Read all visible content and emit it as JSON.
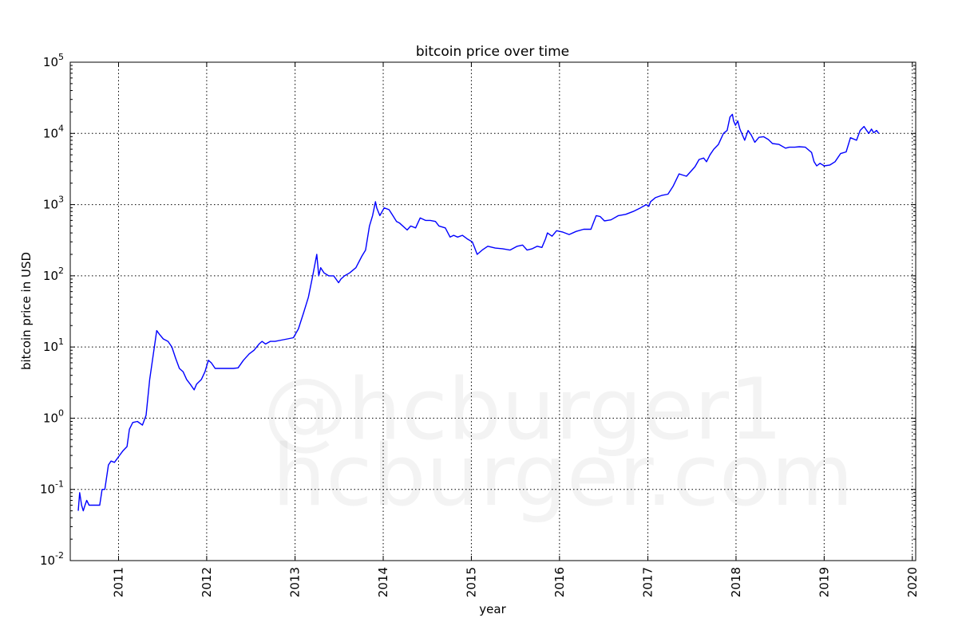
{
  "chart_data": {
    "type": "line",
    "title": "bitcoin price over time",
    "xlabel": "year",
    "ylabel": "bitcoin price in USD",
    "yscale": "log",
    "grid": true,
    "ylim": [
      0.01,
      100000
    ],
    "xlim": [
      "2010-06-15",
      "2020-01-15"
    ],
    "x_ticks": [
      "2011",
      "2012",
      "2013",
      "2014",
      "2015",
      "2016",
      "2017",
      "2018",
      "2019",
      "2020"
    ],
    "y_ticks": [
      {
        "base": "10",
        "exp": "-2",
        "value": 0.01
      },
      {
        "base": "10",
        "exp": "-1",
        "value": 0.1
      },
      {
        "base": "10",
        "exp": "0",
        "value": 1
      },
      {
        "base": "10",
        "exp": "1",
        "value": 10
      },
      {
        "base": "10",
        "exp": "2",
        "value": 100
      },
      {
        "base": "10",
        "exp": "3",
        "value": 1000
      },
      {
        "base": "10",
        "exp": "4",
        "value": 10000
      },
      {
        "base": "10",
        "exp": "5",
        "value": 100000
      }
    ],
    "line_color": "#0000ff",
    "series": [
      {
        "x": [
          "2010-07-18",
          "2010-07-24",
          "2010-08-01",
          "2010-08-08",
          "2010-08-15",
          "2010-08-22",
          "2010-09-01",
          "2010-09-20",
          "2010-10-15",
          "2010-10-25",
          "2010-11-05",
          "2010-11-20",
          "2010-12-01",
          "2010-12-15",
          "2011-01-05",
          "2011-01-20",
          "2011-02-05",
          "2011-02-15",
          "2011-03-01",
          "2011-03-20",
          "2011-04-10",
          "2011-04-25",
          "2011-05-10",
          "2011-05-25",
          "2011-06-08",
          "2011-06-20",
          "2011-07-05",
          "2011-07-25",
          "2011-08-10",
          "2011-08-25",
          "2011-09-10",
          "2011-09-25",
          "2011-10-10",
          "2011-10-25",
          "2011-11-10",
          "2011-11-20",
          "2011-12-10",
          "2011-12-25",
          "2012-01-08",
          "2012-01-20",
          "2012-02-05",
          "2012-02-20",
          "2012-03-10",
          "2012-04-01",
          "2012-04-20",
          "2012-05-10",
          "2012-06-01",
          "2012-06-25",
          "2012-07-15",
          "2012-08-05",
          "2012-08-17",
          "2012-09-01",
          "2012-09-20",
          "2012-10-10",
          "2012-11-05",
          "2012-12-01",
          "2012-12-25",
          "2013-01-15",
          "2013-02-05",
          "2013-02-25",
          "2013-03-15",
          "2013-04-01",
          "2013-04-09",
          "2013-04-17",
          "2013-05-01",
          "2013-05-20",
          "2013-06-10",
          "2013-06-30",
          "2013-07-10",
          "2013-07-25",
          "2013-08-15",
          "2013-09-10",
          "2013-10-05",
          "2013-10-20",
          "2013-11-05",
          "2013-11-18",
          "2013-11-30",
          "2013-12-05",
          "2013-12-18",
          "2014-01-05",
          "2014-01-25",
          "2014-02-10",
          "2014-02-25",
          "2014-03-10",
          "2014-04-10",
          "2014-04-25",
          "2014-05-15",
          "2014-06-03",
          "2014-06-25",
          "2014-07-15",
          "2014-08-05",
          "2014-08-20",
          "2014-09-15",
          "2014-10-05",
          "2014-10-20",
          "2014-11-05",
          "2014-11-25",
          "2014-12-15",
          "2015-01-05",
          "2015-01-14",
          "2015-01-25",
          "2015-02-15",
          "2015-03-10",
          "2015-04-10",
          "2015-05-10",
          "2015-06-10",
          "2015-07-10",
          "2015-08-01",
          "2015-08-20",
          "2015-09-10",
          "2015-10-01",
          "2015-10-20",
          "2015-11-04",
          "2015-11-12",
          "2015-12-01",
          "2015-12-20",
          "2016-01-15",
          "2016-02-10",
          "2016-03-10",
          "2016-04-10",
          "2016-05-10",
          "2016-06-01",
          "2016-06-17",
          "2016-07-05",
          "2016-08-01",
          "2016-09-01",
          "2016-10-01",
          "2016-11-01",
          "2016-12-01",
          "2016-12-25",
          "2017-01-05",
          "2017-01-12",
          "2017-02-01",
          "2017-03-01",
          "2017-03-25",
          "2017-04-15",
          "2017-05-10",
          "2017-05-25",
          "2017-06-10",
          "2017-07-15",
          "2017-08-01",
          "2017-08-20",
          "2017-09-01",
          "2017-09-15",
          "2017-10-01",
          "2017-10-20",
          "2017-11-10",
          "2017-11-25",
          "2017-12-07",
          "2017-12-17",
          "2017-12-22",
          "2017-12-30",
          "2018-01-08",
          "2018-01-17",
          "2018-02-06",
          "2018-02-20",
          "2018-03-05",
          "2018-03-20",
          "2018-04-06",
          "2018-04-25",
          "2018-05-15",
          "2018-06-01",
          "2018-06-28",
          "2018-07-25",
          "2018-08-10",
          "2018-09-01",
          "2018-09-20",
          "2018-10-15",
          "2018-11-10",
          "2018-11-20",
          "2018-12-01",
          "2018-12-15",
          "2019-01-01",
          "2019-01-25",
          "2019-02-15",
          "2019-03-10",
          "2019-04-02",
          "2019-04-20",
          "2019-05-15",
          "2019-05-30",
          "2019-06-15",
          "2019-06-26",
          "2019-07-05",
          "2019-07-16",
          "2019-07-25",
          "2019-08-06",
          "2019-08-15"
        ],
        "y": [
          0.05,
          0.09,
          0.06,
          0.05,
          0.06,
          0.07,
          0.06,
          0.06,
          0.06,
          0.1,
          0.1,
          0.22,
          0.25,
          0.24,
          0.3,
          0.35,
          0.4,
          0.7,
          0.87,
          0.9,
          0.8,
          1.1,
          3.5,
          8,
          17,
          15,
          13,
          12,
          10,
          7,
          5,
          4.5,
          3.5,
          3.0,
          2.5,
          3.0,
          3.5,
          4.5,
          6.5,
          6.0,
          5.0,
          5.0,
          5.0,
          5.0,
          5.0,
          5.1,
          6.5,
          8.0,
          9.0,
          11,
          12,
          11,
          12,
          12,
          12.5,
          13,
          13.5,
          18,
          30,
          50,
          100,
          200,
          100,
          130,
          110,
          100,
          100,
          80,
          90,
          100,
          110,
          130,
          190,
          230,
          500,
          700,
          1100,
          900,
          700,
          900,
          850,
          700,
          580,
          550,
          440,
          500,
          470,
          650,
          600,
          600,
          580,
          500,
          470,
          350,
          370,
          350,
          370,
          330,
          300,
          250,
          200,
          230,
          260,
          245,
          240,
          230,
          260,
          270,
          230,
          240,
          260,
          250,
          330,
          400,
          360,
          430,
          410,
          380,
          420,
          450,
          450,
          700,
          680,
          590,
          610,
          700,
          730,
          800,
          900,
          1000,
          950,
          1100,
          1250,
          1350,
          1400,
          1800,
          2700,
          2600,
          2500,
          3400,
          4300,
          4500,
          4000,
          5000,
          6000,
          7000,
          10000,
          11000,
          17000,
          18500,
          15000,
          13000,
          15000,
          11500,
          8000,
          11000,
          9500,
          7500,
          8800,
          9000,
          8200,
          7200,
          7000,
          6200,
          6400,
          6400,
          6500,
          6400,
          5400,
          4000,
          3500,
          3800,
          3500,
          3600,
          4000,
          5200,
          5500,
          8700,
          8000,
          11000,
          12500,
          11000,
          10000,
          11500,
          10200,
          11000,
          10000
        ]
      }
    ],
    "watermark": [
      "@hcburger1",
      "hcburger.com"
    ]
  }
}
